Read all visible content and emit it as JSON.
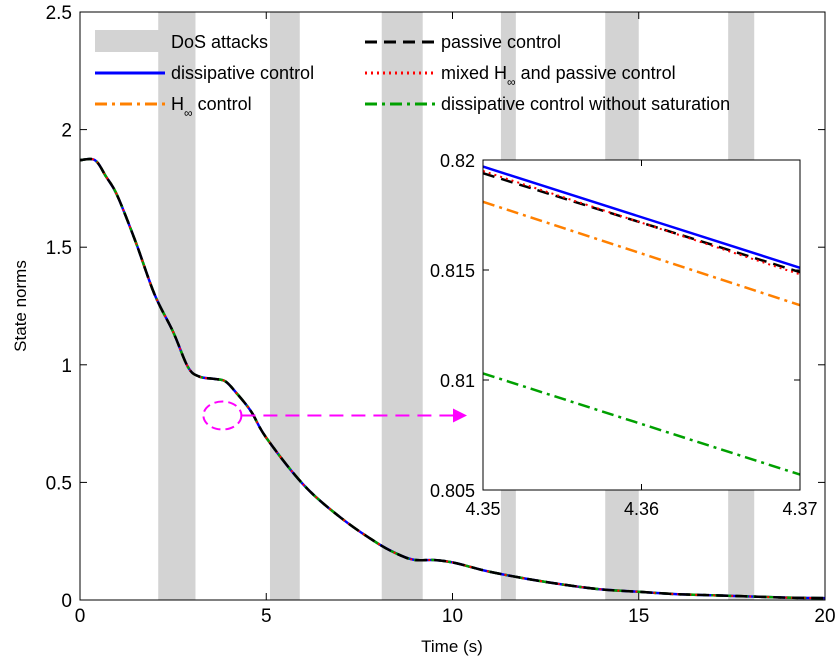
{
  "chart_data": {
    "type": "line",
    "xlabel": "Time (s)",
    "ylabel": "State norms",
    "xlim": [
      0,
      20
    ],
    "ylim": [
      0,
      2.5
    ],
    "xticks": [
      "0",
      "5",
      "10",
      "15",
      "20"
    ],
    "yticks": [
      "0",
      "0.5",
      "1",
      "1.5",
      "2",
      "2.5"
    ],
    "grid": false,
    "legend_position": "top",
    "dos_attack_intervals": [
      [
        2.1,
        3.1
      ],
      [
        5.1,
        5.9
      ],
      [
        8.1,
        9.2
      ],
      [
        11.3,
        11.7
      ],
      [
        14.1,
        15.0
      ],
      [
        17.4,
        18.1
      ]
    ],
    "legend": [
      {
        "key": "dos",
        "label": "DoS attacks",
        "color": "#d3d3d3",
        "style": "patch"
      },
      {
        "key": "passive",
        "label": "passive control",
        "color": "#000000",
        "style": "dashed"
      },
      {
        "key": "dissipative",
        "label": "dissipative control",
        "color": "#0000ff",
        "style": "solid"
      },
      {
        "key": "mixed",
        "label_main": "mixed H",
        "label_sub": "∞",
        "label_rest": " and passive control",
        "color": "#ff0000",
        "style": "dotted"
      },
      {
        "key": "hinf",
        "label_main": "H",
        "label_sub": "∞",
        "label_rest": " control",
        "color": "#ff8000",
        "style": "dashdot"
      },
      {
        "key": "nosat",
        "label": "dissipative control without saturation",
        "color": "#00a000",
        "style": "dashdot"
      }
    ],
    "series_main": {
      "x": [
        0,
        0.4,
        0.7,
        1.0,
        1.5,
        2.0,
        2.5,
        2.9,
        3.2,
        3.6,
        3.9,
        4.2,
        4.6,
        5.0,
        6.0,
        7.0,
        8.0,
        8.6,
        9.0,
        9.5,
        10.0,
        10.5,
        11.0,
        12.0,
        13.0,
        14.0,
        15.0,
        16.0,
        17.0,
        18.0,
        19.0,
        20.0
      ],
      "y": [
        1.87,
        1.87,
        1.8,
        1.72,
        1.52,
        1.3,
        1.14,
        0.99,
        0.95,
        0.94,
        0.93,
        0.88,
        0.8,
        0.69,
        0.49,
        0.35,
        0.24,
        0.19,
        0.17,
        0.17,
        0.16,
        0.14,
        0.12,
        0.09,
        0.065,
        0.045,
        0.035,
        0.025,
        0.02,
        0.015,
        0.01,
        0.008
      ]
    },
    "inset": {
      "xlim": [
        4.35,
        4.37
      ],
      "ylim": [
        0.805,
        0.82
      ],
      "xticks": [
        "4.35",
        "4.36",
        "4.37"
      ],
      "yticks": [
        "0.805",
        "0.81",
        "0.815",
        "0.82"
      ],
      "zoom_point": {
        "x": 4.36,
        "y": 0.81
      },
      "series": [
        {
          "key": "dissipative",
          "color": "#0000ff",
          "style": "solid",
          "x": [
            4.35,
            4.37
          ],
          "y": [
            0.8197,
            0.8151
          ]
        },
        {
          "key": "passive",
          "color": "#000000",
          "style": "dashed",
          "x": [
            4.35,
            4.37
          ],
          "y": [
            0.8194,
            0.8149
          ]
        },
        {
          "key": "mixed",
          "color": "#ff0000",
          "style": "dotted",
          "x": [
            4.35,
            4.37
          ],
          "y": [
            0.8195,
            0.8148
          ]
        },
        {
          "key": "hinf",
          "color": "#ff8000",
          "style": "dashdot",
          "x": [
            4.35,
            4.37
          ],
          "y": [
            0.8181,
            0.8134
          ]
        },
        {
          "key": "nosat",
          "color": "#00a000",
          "style": "dashdot",
          "x": [
            4.35,
            4.37
          ],
          "y": [
            0.8103,
            0.8057
          ]
        }
      ]
    }
  }
}
